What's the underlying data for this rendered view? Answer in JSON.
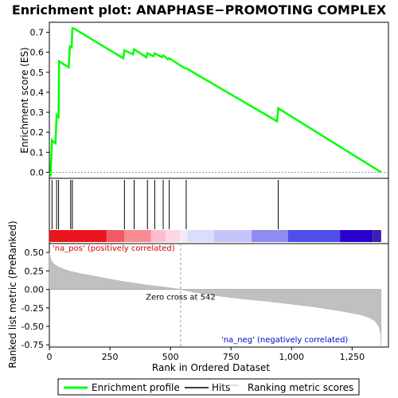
{
  "chart_data": {
    "type": "line",
    "title": "Enrichment plot: ANAPHASE−PROMOTING COMPLEX",
    "top_panel": {
      "ylabel": "Enrichment score (ES)",
      "ylim": [
        -0.03,
        0.75
      ],
      "yticks": [
        0.0,
        0.1,
        0.2,
        0.3,
        0.4,
        0.5,
        0.6,
        0.7
      ],
      "ytick_labels": [
        "0.0",
        "0.1",
        "0.2",
        "0.3",
        "0.4",
        "0.5",
        "0.6",
        "0.7"
      ],
      "series": [
        {
          "name": "Enrichment profile",
          "x": [
            0,
            5,
            11,
            15,
            25,
            30,
            33,
            38,
            40,
            80,
            85,
            92,
            95,
            100,
            305,
            310,
            345,
            350,
            400,
            405,
            430,
            435,
            465,
            470,
            490,
            495,
            560,
            565,
            940,
            945,
            1370
          ],
          "y": [
            0.0,
            -0.01,
            0.16,
            0.155,
            0.145,
            0.285,
            0.28,
            0.275,
            0.555,
            0.525,
            0.63,
            0.625,
            0.72,
            0.72,
            0.57,
            0.61,
            0.59,
            0.615,
            0.575,
            0.595,
            0.58,
            0.595,
            0.575,
            0.585,
            0.565,
            0.57,
            0.52,
            0.52,
            0.255,
            0.32,
            0.0
          ],
          "color": "#00ff00"
        }
      ]
    },
    "hits": [
      11,
      30,
      38,
      88,
      95,
      310,
      350,
      405,
      435,
      470,
      495,
      565,
      945
    ],
    "bottom_panel": {
      "ylabel": "Ranked list metric (PreRanked)",
      "xlabel": "Rank in Ordered Dataset",
      "ylim": [
        -0.78,
        0.62
      ],
      "yticks": [
        -0.75,
        -0.5,
        -0.25,
        0.0,
        0.25,
        0.5
      ],
      "ytick_labels": [
        "-0.75",
        "-0.50",
        "-0.25",
        "0.00",
        "0.25",
        "0.50"
      ],
      "xlim": [
        0,
        1400
      ],
      "xticks": [
        0,
        250,
        500,
        750,
        1000,
        1250
      ],
      "xtick_labels": [
        "0",
        "250",
        "500",
        "750",
        "1,000",
        "1,250"
      ],
      "metric_curve": {
        "x": [
          0,
          5,
          10,
          20,
          40,
          80,
          120,
          200,
          300,
          400,
          480,
          542,
          600,
          700,
          800,
          900,
          1000,
          1100,
          1200,
          1280,
          1320,
          1345,
          1360,
          1368,
          1370
        ],
        "y": [
          0.5,
          0.42,
          0.38,
          0.34,
          0.3,
          0.25,
          0.22,
          0.17,
          0.11,
          0.06,
          0.03,
          0.0,
          -0.04,
          -0.09,
          -0.13,
          -0.16,
          -0.2,
          -0.24,
          -0.29,
          -0.34,
          -0.38,
          -0.43,
          -0.5,
          -0.6,
          -0.78
        ]
      },
      "zero_cross": 542,
      "zero_cross_label": "Zero cross at 542",
      "pos_label": "'na_pos' (positively correlated)",
      "neg_label": "'na_neg' (negatively correlated)",
      "pos_color": "#cc0000",
      "neg_color": "#0000cc"
    },
    "color_bar": {
      "segments": [
        {
          "start": 0,
          "end": 235,
          "color": "#e8161c"
        },
        {
          "start": 235,
          "end": 310,
          "color": "#f05a62"
        },
        {
          "start": 310,
          "end": 420,
          "color": "#f78b91"
        },
        {
          "start": 420,
          "end": 480,
          "color": "#fbbccb"
        },
        {
          "start": 480,
          "end": 540,
          "color": "#fcd6e6"
        },
        {
          "start": 540,
          "end": 570,
          "color": "#f2eaf7"
        },
        {
          "start": 570,
          "end": 680,
          "color": "#dcdcfb"
        },
        {
          "start": 680,
          "end": 835,
          "color": "#c4c4f8"
        },
        {
          "start": 835,
          "end": 985,
          "color": "#8c8cf2"
        },
        {
          "start": 985,
          "end": 1200,
          "color": "#4f4fe6"
        },
        {
          "start": 1200,
          "end": 1335,
          "color": "#2a00cc"
        },
        {
          "start": 1335,
          "end": 1370,
          "color": "#3d1fb0"
        }
      ]
    },
    "legend": {
      "entries": [
        {
          "label": "Enrichment profile",
          "color": "#00ff00"
        },
        {
          "label": "Hits",
          "color": "#000000"
        },
        {
          "label": "Ranking metric scores",
          "color": "#c0c0c0"
        }
      ]
    }
  }
}
